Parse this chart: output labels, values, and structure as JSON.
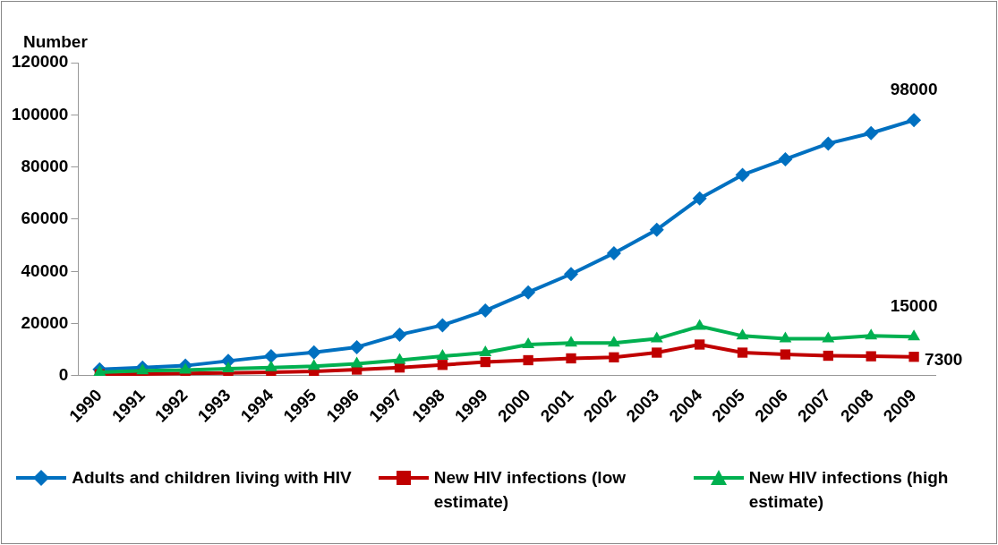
{
  "chart_data": {
    "type": "line",
    "ylabel": "Number",
    "categories": [
      "1990",
      "1991",
      "1992",
      "1993",
      "1994",
      "1995",
      "1996",
      "1997",
      "1998",
      "1999",
      "2000",
      "2001",
      "2002",
      "2003",
      "2004",
      "2005",
      "2006",
      "2007",
      "2008",
      "2009"
    ],
    "series": [
      {
        "name": "Adults and children living with HIV",
        "color": "#0070c0",
        "marker": "diamond",
        "values": [
          2500,
          3200,
          3900,
          5700,
          7500,
          9000,
          11000,
          15800,
          19400,
          25000,
          32000,
          39000,
          47000,
          56000,
          68000,
          77000,
          83000,
          89000,
          93000,
          98000
        ],
        "value_labels": [
          null,
          null,
          null,
          null,
          null,
          null,
          null,
          null,
          null,
          null,
          null,
          null,
          null,
          null,
          null,
          null,
          null,
          null,
          null,
          "98000"
        ]
      },
      {
        "name": "New HIV infections (low estimate)",
        "color": "#c00000",
        "marker": "square",
        "values": [
          600,
          700,
          900,
          1100,
          1400,
          1700,
          2400,
          3200,
          4200,
          5300,
          6000,
          6700,
          7100,
          8900,
          12000,
          8900,
          8200,
          7700,
          7500,
          7300
        ],
        "value_labels": [
          null,
          null,
          null,
          null,
          null,
          null,
          null,
          null,
          null,
          null,
          null,
          null,
          null,
          null,
          null,
          null,
          null,
          null,
          null,
          "7300"
        ]
      },
      {
        "name": "New HIV infections (high estimate)",
        "color": "#00b050",
        "marker": "triangle",
        "values": [
          1400,
          2000,
          2200,
          2700,
          3200,
          3700,
          4600,
          6000,
          7500,
          8900,
          12000,
          12600,
          12600,
          14200,
          19000,
          15300,
          14200,
          14200,
          15300,
          15000
        ],
        "value_labels": [
          null,
          null,
          null,
          null,
          null,
          null,
          null,
          null,
          null,
          null,
          null,
          null,
          null,
          null,
          null,
          null,
          null,
          null,
          null,
          "15000"
        ]
      }
    ],
    "ylim": [
      0,
      120000
    ],
    "yticks": [
      0,
      20000,
      40000,
      60000,
      80000,
      100000,
      120000
    ],
    "grid": false,
    "legend": "bottom",
    "line_style": "solid"
  }
}
